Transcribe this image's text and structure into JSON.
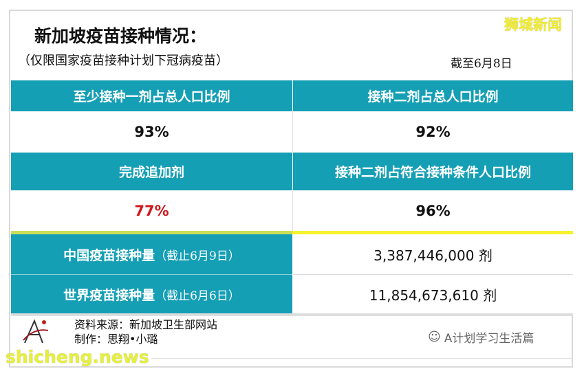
{
  "header": {
    "title": "新加坡疫苗接种情况：",
    "subtitle": "（仅限国家疫苗接种计划下冠病疫苗）",
    "as_of": "截至6月8日",
    "brand": "狮城新闻"
  },
  "grid": [
    {
      "label": "至少接种一剂占总人口比例",
      "value": "93%",
      "value_color": "#111111"
    },
    {
      "label": "接种二剂占总人口比例",
      "value": "92%",
      "value_color": "#111111"
    },
    {
      "label": "完成追加剂",
      "value": "77%",
      "value_color": "#d0171c"
    },
    {
      "label": "接种二剂占符合接种条件人口比例",
      "value": "96%",
      "value_color": "#111111"
    }
  ],
  "totals": [
    {
      "label": "中国疫苗接种量",
      "note": "（截止6月9日）",
      "value": "3,387,446,000 剂"
    },
    {
      "label": "世界疫苗接种量",
      "note": "（截止6月6日）",
      "value": "11,854,673,610 剂"
    }
  ],
  "footer": {
    "source": "资料来源：新加坡卫生部网站",
    "author": "制作：思翔•小璐",
    "logo_text": "A",
    "wechat": "A计划学习生活篇",
    "site": "shicheng.news"
  },
  "colors": {
    "teal": "#159fb5",
    "highlight": "#d0171c",
    "divider": "#f7f22f"
  }
}
